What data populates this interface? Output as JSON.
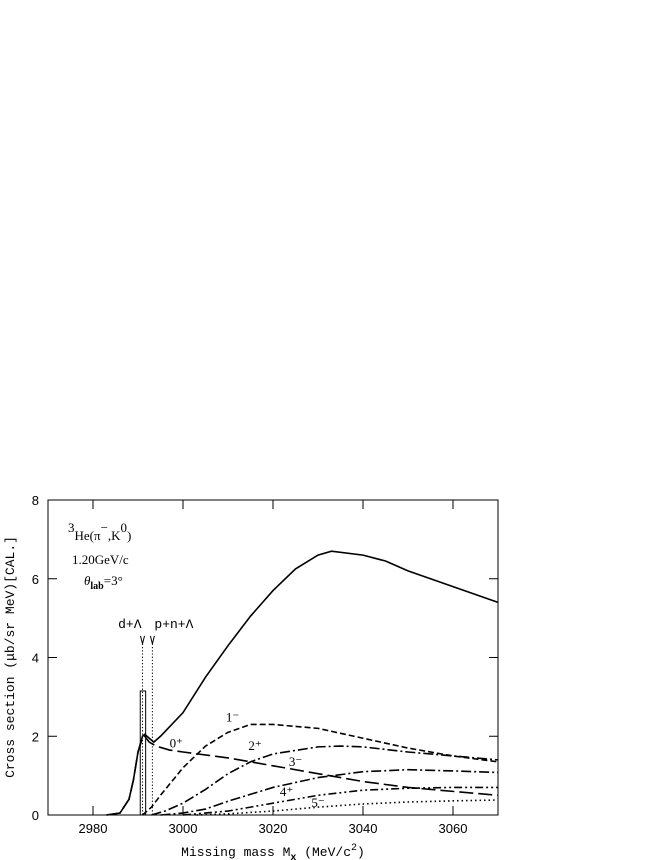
{
  "chart_data": {
    "type": "line",
    "title_parts": [
      "3",
      "He(π",
      "−",
      ",K",
      "0",
      ")"
    ],
    "subtitle": "1.20GeV/c",
    "angle_parts": [
      "θ",
      "lab",
      "=3°"
    ],
    "xlabel_parts": [
      "Missing mass M",
      "x",
      " (MeV/c",
      "2",
      ")"
    ],
    "ylabel": "Cross section (μb/sr MeV)[CAL.]",
    "xlim": [
      2970,
      3070
    ],
    "ylim": [
      0,
      8
    ],
    "xticks": [
      2980,
      3000,
      3020,
      3040,
      3060
    ],
    "yticks": [
      0,
      2,
      4,
      6,
      8
    ],
    "thresholds": [
      {
        "label": "d+Λ",
        "x": 2991
      },
      {
        "label": "p+n+Λ",
        "x": 2993.2
      }
    ],
    "bar": {
      "edges": [
        2990.5,
        2991.7
      ],
      "value": 3.15
    },
    "series": [
      {
        "style": "solid",
        "color": "#000000",
        "x": [
          2983,
          2986,
          2988,
          2989,
          2990,
          2991,
          2991.5,
          2992.5,
          2993.5,
          2995,
          3000,
          3005,
          3010,
          3015,
          3020,
          3025,
          3030,
          3033,
          3040,
          3045,
          3050,
          3055,
          3060,
          3065,
          3070
        ],
        "values": [
          0,
          0.05,
          0.4,
          0.9,
          1.6,
          2.0,
          2.05,
          1.95,
          1.85,
          2.0,
          2.6,
          3.5,
          4.3,
          5.05,
          5.7,
          6.25,
          6.6,
          6.7,
          6.6,
          6.45,
          6.2,
          6.0,
          5.8,
          5.6,
          5.4
        ]
      },
      {
        "name": "0⁺",
        "style": "longdash",
        "color": "#000000",
        "x": [
          2983,
          2986,
          2988,
          2989,
          2990,
          2991,
          2991.5,
          2992.5,
          2994,
          2997,
          3000,
          3010,
          3020,
          3030,
          3040,
          3050,
          3060,
          3070
        ],
        "values": [
          0,
          0.05,
          0.4,
          0.9,
          1.6,
          1.95,
          2.0,
          1.85,
          1.75,
          1.65,
          1.6,
          1.45,
          1.25,
          1.05,
          0.85,
          0.7,
          0.6,
          0.5
        ]
      },
      {
        "name": "1⁻",
        "style": "dashed",
        "color": "#000000",
        "x": [
          2991,
          2993,
          2995,
          3000,
          3005,
          3010,
          3015,
          3020,
          3030,
          3040,
          3050,
          3060,
          3070
        ],
        "values": [
          0,
          0.2,
          0.5,
          1.2,
          1.75,
          2.1,
          2.3,
          2.3,
          2.2,
          1.95,
          1.7,
          1.5,
          1.35
        ]
      },
      {
        "name": "2⁺",
        "style": "dashdot",
        "color": "#000000",
        "x": [
          2993,
          2996,
          3000,
          3005,
          3010,
          3015,
          3020,
          3030,
          3035,
          3040,
          3050,
          3060,
          3070
        ],
        "values": [
          0,
          0.1,
          0.3,
          0.65,
          1.05,
          1.35,
          1.55,
          1.73,
          1.75,
          1.73,
          1.6,
          1.5,
          1.4
        ]
      },
      {
        "name": "3⁻",
        "style": "dashdot",
        "color": "#000000",
        "x": [
          2995,
          3000,
          3005,
          3010,
          3020,
          3030,
          3040,
          3050,
          3060,
          3070
        ],
        "values": [
          0,
          0.05,
          0.15,
          0.35,
          0.7,
          0.95,
          1.1,
          1.15,
          1.12,
          1.08
        ]
      },
      {
        "name": "4⁺",
        "style": "dashdotdot",
        "color": "#000000",
        "x": [
          3000,
          3010,
          3020,
          3030,
          3040,
          3050,
          3060,
          3070
        ],
        "values": [
          0,
          0.1,
          0.3,
          0.5,
          0.63,
          0.68,
          0.7,
          0.7
        ]
      },
      {
        "name": "5⁻",
        "style": "dotted",
        "color": "#000000",
        "x": [
          3003,
          3010,
          3020,
          3030,
          3040,
          3050,
          3060,
          3070
        ],
        "values": [
          0,
          0.03,
          0.1,
          0.2,
          0.28,
          0.33,
          0.36,
          0.38
        ]
      }
    ]
  }
}
